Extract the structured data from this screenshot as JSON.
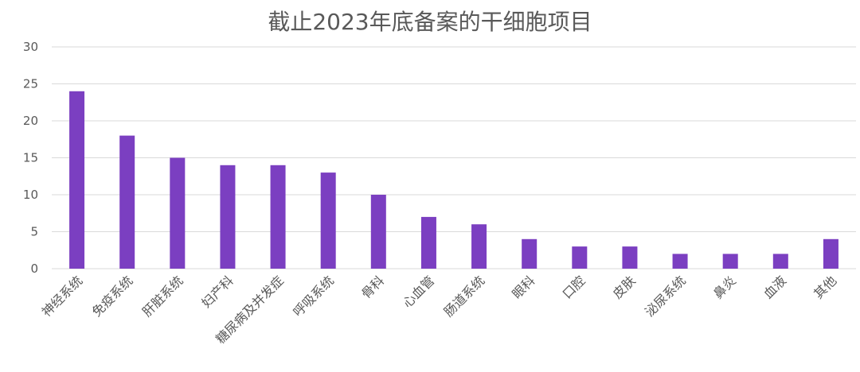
{
  "chart_data": {
    "type": "bar",
    "title": "截止2023年底备案的干细胞项目",
    "categories": [
      "神经系统",
      "免疫系统",
      "肝脏系统",
      "妇产科",
      "糖尿病及并发症",
      "呼吸系统",
      "骨科",
      "心血管",
      "肠道系统",
      "眼科",
      "口腔",
      "皮肤",
      "泌尿系统",
      "鼻炎",
      "血液",
      "其他"
    ],
    "values": [
      24,
      18,
      15,
      14,
      14,
      13,
      10,
      7,
      6,
      4,
      3,
      3,
      2,
      2,
      2,
      4
    ],
    "ylim": [
      0,
      30
    ],
    "yticks": [
      0,
      5,
      10,
      15,
      20,
      25,
      30
    ],
    "grid": true,
    "legend": "none",
    "bar_color": "#7B3FC1",
    "grid_color": "#D9D9D9",
    "text_color": "#595959"
  }
}
